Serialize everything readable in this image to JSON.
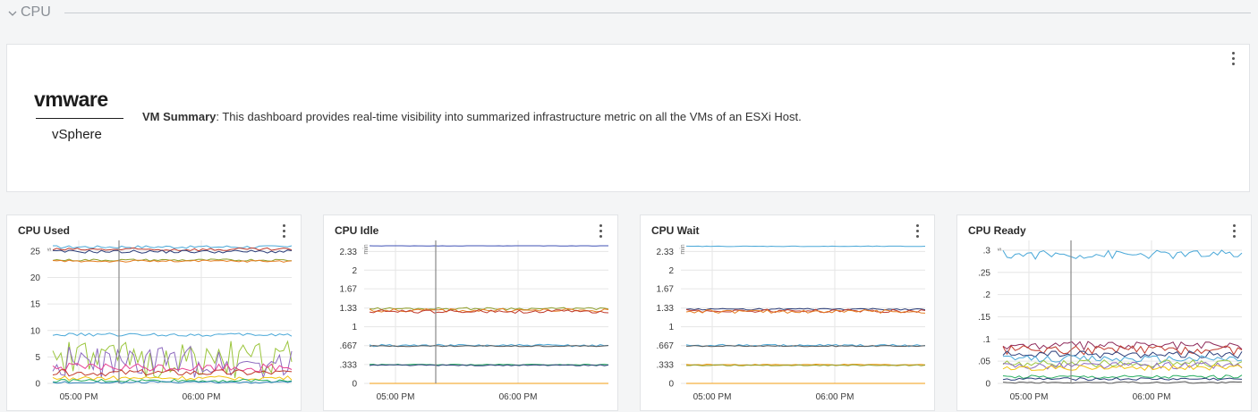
{
  "section": {
    "title": "CPU",
    "collapse_icon": "chevron-down-icon"
  },
  "summary_panel": {
    "logo_word": "vmware",
    "logo_product": "vSphere",
    "title_bold": "VM Summary",
    "description": ": This dashboard provides real-time visibility into summarized infrastructure metric on all the VMs of an ESXi Host.",
    "menu_icon": "kebab-menu-icon"
  },
  "panels": [
    {
      "title": "CPU Used",
      "unit": "s",
      "y_ticks": [
        "25",
        "20",
        "15",
        "10",
        "5",
        "0"
      ],
      "x_ticks": [
        "05:00 PM",
        "06:00 PM"
      ],
      "menu_icon": "kebab-menu-icon"
    },
    {
      "title": "CPU Idle",
      "unit": "min",
      "y_ticks": [
        "2.33",
        "2",
        "1.67",
        "1.33",
        "1",
        ".667",
        ".333",
        "0"
      ],
      "x_ticks": [
        "05:00 PM",
        "06:00 PM"
      ],
      "menu_icon": "kebab-menu-icon"
    },
    {
      "title": "CPU Wait",
      "unit": "min",
      "y_ticks": [
        "2.33",
        "2",
        "1.67",
        "1.33",
        "1",
        ".667",
        ".333",
        "0"
      ],
      "x_ticks": [
        "05:00 PM",
        "06:00 PM"
      ],
      "menu_icon": "kebab-menu-icon"
    },
    {
      "title": "CPU Ready",
      "unit": "s",
      "y_ticks": [
        ".3",
        ".25",
        ".2",
        ".15",
        ".1",
        ".05",
        "0"
      ],
      "x_ticks": [
        "05:00 PM",
        "06:00 PM"
      ],
      "menu_icon": "kebab-menu-icon"
    }
  ],
  "chart_data": [
    {
      "type": "line",
      "title": "CPU Used",
      "ylim": [
        0,
        26
      ],
      "y_unit": "s",
      "x_ticks": [
        "05:00 PM",
        "06:00 PM"
      ],
      "series": [
        {
          "color": "#4aa8d8",
          "level": 25.8,
          "noise": 0.3
        },
        {
          "color": "#c0392b",
          "level": 25.3,
          "noise": 0.3
        },
        {
          "color": "#2c3e7a",
          "level": 24.9,
          "noise": 0.3
        },
        {
          "color": "#8e9e2a",
          "level": 23.3,
          "noise": 0.2
        },
        {
          "color": "#e67e22",
          "level": 23.1,
          "noise": 0.2
        },
        {
          "color": "#4aa8d8",
          "level": 9.2,
          "noise": 0.3
        },
        {
          "color": "#9bc53d",
          "level": 4.5,
          "noise": 3.5
        },
        {
          "color": "#8e6bbf",
          "level": 4.0,
          "noise": 3.0
        },
        {
          "color": "#e84393",
          "level": 3.0,
          "noise": 0.8
        },
        {
          "color": "#c0392b",
          "level": 2.0,
          "noise": 0.6
        },
        {
          "color": "#f1c40f",
          "level": 1.0,
          "noise": 0.4
        },
        {
          "color": "#27ae60",
          "level": 0.5,
          "noise": 0.3
        },
        {
          "color": "#2980b9",
          "level": 0.2,
          "noise": 0.2
        }
      ]
    },
    {
      "type": "line",
      "title": "CPU Idle",
      "ylim": [
        0,
        2.43
      ],
      "y_unit": "min",
      "x_ticks": [
        "05:00 PM",
        "06:00 PM"
      ],
      "series": [
        {
          "color": "#3f51b5",
          "level": 2.43,
          "noise": 0.005
        },
        {
          "color": "#8e9e2a",
          "level": 1.32,
          "noise": 0.02
        },
        {
          "color": "#e67e22",
          "level": 1.29,
          "noise": 0.03
        },
        {
          "color": "#c0392b",
          "level": 1.27,
          "noise": 0.03
        },
        {
          "color": "#4aa8d8",
          "level": 0.67,
          "noise": 0.02
        },
        {
          "color": "#555555",
          "level": 0.66,
          "noise": 0.01
        },
        {
          "color": "#27ae60",
          "level": 0.33,
          "noise": 0.01
        },
        {
          "color": "#2c3e7a",
          "level": 0.32,
          "noise": 0.01
        },
        {
          "color": "#f39c12",
          "level": 0.0,
          "noise": 0.0
        }
      ]
    },
    {
      "type": "line",
      "title": "CPU Wait",
      "ylim": [
        0,
        2.43
      ],
      "y_unit": "min",
      "x_ticks": [
        "05:00 PM",
        "06:00 PM"
      ],
      "series": [
        {
          "color": "#4aa8d8",
          "level": 2.42,
          "noise": 0.005
        },
        {
          "color": "#2c3e7a",
          "level": 1.31,
          "noise": 0.015
        },
        {
          "color": "#c0392b",
          "level": 1.28,
          "noise": 0.03
        },
        {
          "color": "#e67e22",
          "level": 1.27,
          "noise": 0.03
        },
        {
          "color": "#4aa8d8",
          "level": 0.67,
          "noise": 0.02
        },
        {
          "color": "#555555",
          "level": 0.66,
          "noise": 0.01
        },
        {
          "color": "#f39c12",
          "level": 0.33,
          "noise": 0.01
        },
        {
          "color": "#8e9e2a",
          "level": 0.32,
          "noise": 0.01
        },
        {
          "color": "#f39c12",
          "level": 0.0,
          "noise": 0.0
        }
      ]
    },
    {
      "type": "line",
      "title": "CPU Ready",
      "ylim": [
        0,
        0.31
      ],
      "y_unit": "s",
      "x_ticks": [
        "05:00 PM",
        "06:00 PM"
      ],
      "series": [
        {
          "color": "#4aa8d8",
          "level": 0.29,
          "noise": 0.01
        },
        {
          "color": "#8e2a5a",
          "level": 0.085,
          "noise": 0.01
        },
        {
          "color": "#c0392b",
          "level": 0.075,
          "noise": 0.01
        },
        {
          "color": "#2c3e7a",
          "level": 0.065,
          "noise": 0.008
        },
        {
          "color": "#4aa8d8",
          "level": 0.055,
          "noise": 0.008
        },
        {
          "color": "#9bc53d",
          "level": 0.045,
          "noise": 0.008
        },
        {
          "color": "#8e6bbf",
          "level": 0.04,
          "noise": 0.008
        },
        {
          "color": "#f1c40f",
          "level": 0.035,
          "noise": 0.006
        },
        {
          "color": "#27ae60",
          "level": 0.015,
          "noise": 0.004
        },
        {
          "color": "#2c3e7a",
          "level": 0.01,
          "noise": 0.003
        },
        {
          "color": "#555555",
          "level": 0.002,
          "noise": 0.002
        }
      ]
    }
  ]
}
